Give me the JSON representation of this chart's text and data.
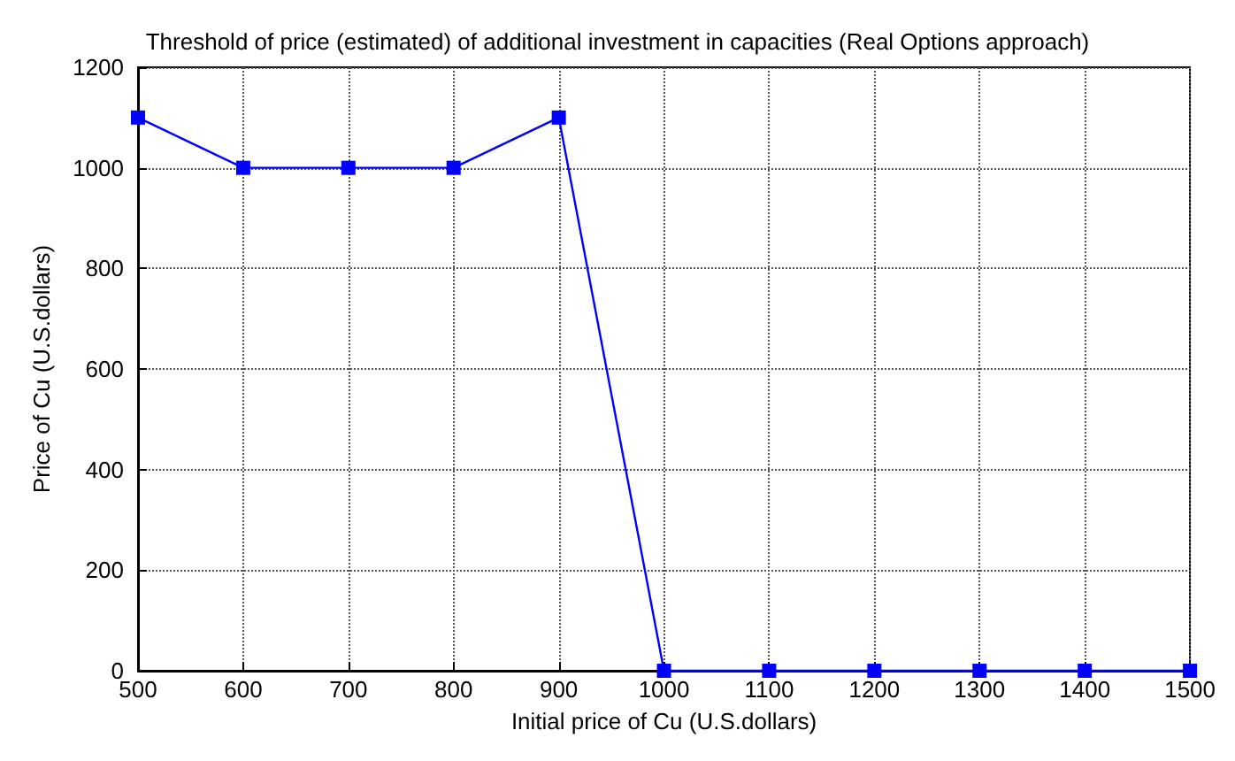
{
  "chart_data": {
    "type": "line",
    "title": "Threshold of price (estimated) of additional investment in capacities (Real Options approach)",
    "xlabel": "Initial price of Cu (U.S.dollars)",
    "ylabel": "Price of Cu (U.S.dollars)",
    "x": [
      500,
      600,
      700,
      800,
      900,
      1000,
      1100,
      1200,
      1300,
      1400,
      1500
    ],
    "series": [
      {
        "color": "#0000ff",
        "values": [
          1100,
          1000,
          1000,
          1000,
          1100,
          0,
          0,
          0,
          0,
          0,
          0
        ]
      }
    ],
    "xlim": [
      500,
      1500
    ],
    "xticks": [
      500,
      600,
      700,
      800,
      900,
      1000,
      1100,
      1200,
      1300,
      1400,
      1500
    ],
    "ylim": [
      0,
      1200
    ],
    "yticks": [
      0,
      200,
      400,
      600,
      800,
      1000,
      1200
    ],
    "grid": true,
    "marker": "square",
    "line_style": "solid"
  }
}
